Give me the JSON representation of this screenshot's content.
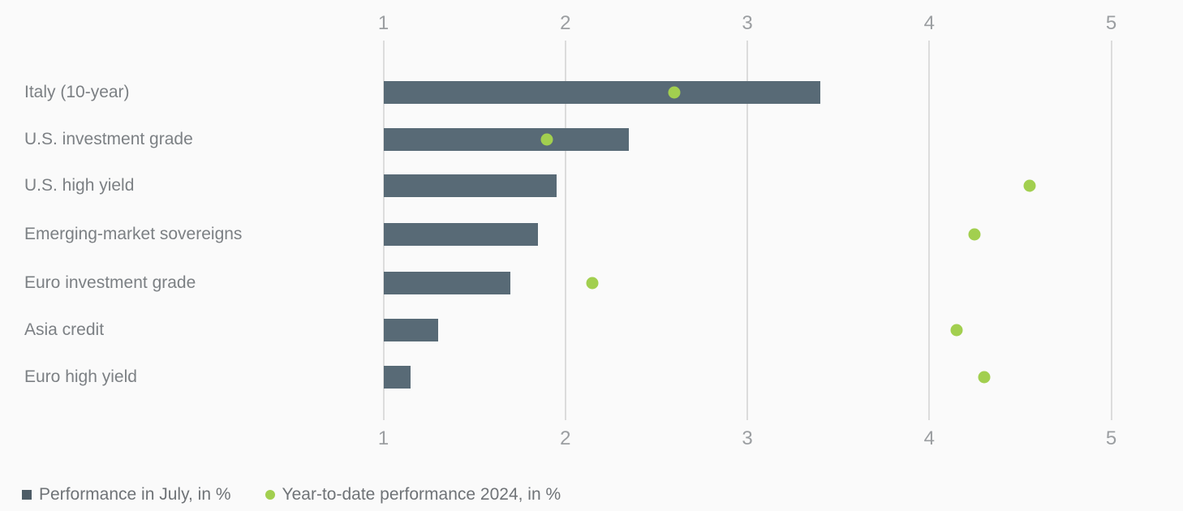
{
  "chart_data": {
    "type": "bar",
    "orientation": "horizontal",
    "title": "",
    "xlabel": "",
    "ylabel": "",
    "xlim": [
      1,
      5
    ],
    "x_ticks": [
      "1",
      "2",
      "3",
      "4",
      "5"
    ],
    "axis_lines": "top-and-bottom",
    "grid": true,
    "bars_start_at": 1,
    "legend_position": "bottom-left",
    "categories": [
      "Italy (10-year)",
      "U.S. investment grade",
      "U.S. high yield",
      "Emerging-market sovereigns",
      "Euro investment grade",
      "Asia credit",
      "Euro high yield"
    ],
    "series": [
      {
        "name": "Performance in July, in %",
        "type": "bar",
        "marker": "square",
        "color": "#586a76",
        "values": [
          3.4,
          2.35,
          1.95,
          1.85,
          1.7,
          1.3,
          1.15
        ]
      },
      {
        "name": "Year-to-date performance 2024, in %",
        "type": "scatter",
        "marker": "circle",
        "color": "#a2cf4f",
        "values": [
          2.6,
          1.9,
          4.55,
          4.25,
          2.15,
          4.15,
          4.3
        ]
      }
    ]
  },
  "colors": {
    "bar": "#586a76",
    "dot": "#a2cf4f",
    "gridline": "#dcdcdc",
    "tick_label": "#9b9ea1",
    "category_label": "#7c8084",
    "legend_text": "#6f7377",
    "background": "#fafafa"
  }
}
